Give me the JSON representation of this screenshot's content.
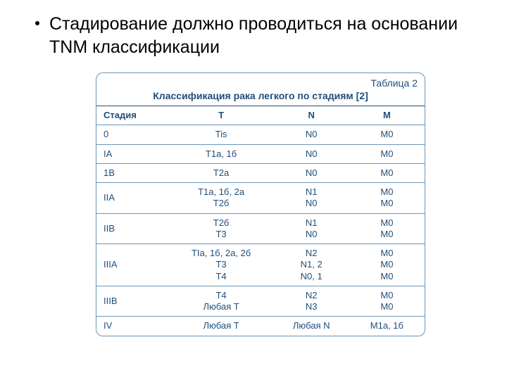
{
  "bullet": {
    "text": "Стадирование должно проводиться на основании TNM классификации"
  },
  "table": {
    "label": "Таблица 2",
    "title": "Классификация рака легкого по стадиям [2]",
    "border_color": "#6c96b5",
    "text_color": "#1f4e79",
    "columns": [
      {
        "key": "stage",
        "label": "Стадия",
        "width_pct": 22
      },
      {
        "key": "t",
        "label": "T",
        "width_pct": 32
      },
      {
        "key": "n",
        "label": "N",
        "width_pct": 23
      },
      {
        "key": "m",
        "label": "M",
        "width_pct": 23
      }
    ],
    "rows": [
      {
        "stage": "0",
        "t": [
          "Tis"
        ],
        "n": [
          "N0"
        ],
        "m": [
          "M0"
        ]
      },
      {
        "stage": "IA",
        "t": [
          "T1a, 1б"
        ],
        "n": [
          "N0"
        ],
        "m": [
          "M0"
        ]
      },
      {
        "stage": "1B",
        "t": [
          "T2a"
        ],
        "n": [
          "N0"
        ],
        "m": [
          "M0"
        ]
      },
      {
        "stage": "IIA",
        "t": [
          "T1a, 1б, 2a",
          "T2б"
        ],
        "n": [
          "N1",
          "N0"
        ],
        "m": [
          "M0",
          "M0"
        ]
      },
      {
        "stage": "IIB",
        "t": [
          "T2б",
          "T3"
        ],
        "n": [
          "N1",
          "N0"
        ],
        "m": [
          "M0",
          "M0"
        ]
      },
      {
        "stage": "IIIA",
        "t": [
          "TIa, 1б, 2a, 2б",
          "T3",
          "T4"
        ],
        "n": [
          "N2",
          "N1, 2",
          "N0, 1"
        ],
        "m": [
          "M0",
          "M0",
          "M0"
        ]
      },
      {
        "stage": "IIIB",
        "t": [
          "T4",
          "Любая T"
        ],
        "n": [
          "N2",
          "N3"
        ],
        "m": [
          "M0",
          "M0"
        ]
      },
      {
        "stage": "IV",
        "t": [
          "Любая T"
        ],
        "n": [
          "Любая N"
        ],
        "m": [
          "M1a, 1б"
        ]
      }
    ]
  }
}
